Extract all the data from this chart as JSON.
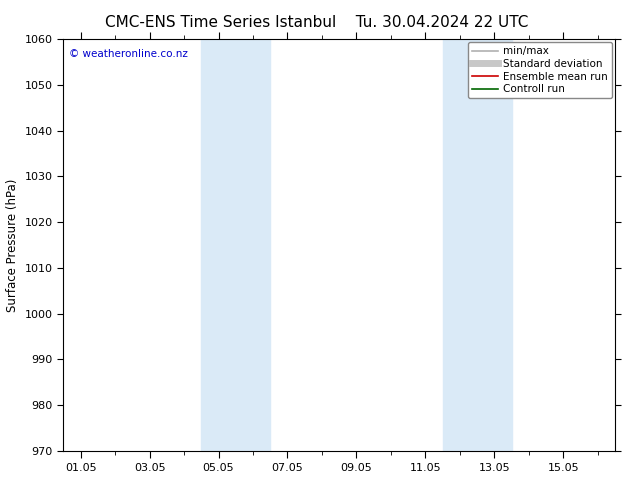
{
  "title_left": "CMC-ENS Time Series Istanbul",
  "title_right": "Tu. 30.04.2024 22 UTC",
  "ylabel": "Surface Pressure (hPa)",
  "ylim": [
    970,
    1060
  ],
  "yticks": [
    970,
    980,
    990,
    1000,
    1010,
    1020,
    1030,
    1040,
    1050,
    1060
  ],
  "xtick_labels": [
    "01.05",
    "03.05",
    "05.05",
    "07.05",
    "09.05",
    "11.05",
    "13.05",
    "15.05"
  ],
  "xtick_positions": [
    0,
    2,
    4,
    6,
    8,
    10,
    12,
    14
  ],
  "xlim": [
    -0.5,
    15.5
  ],
  "shaded_bands": [
    {
      "xmin": 3.5,
      "xmax": 5.5
    },
    {
      "xmin": 10.5,
      "xmax": 12.5
    }
  ],
  "shade_color": "#daeaf7",
  "background_color": "#ffffff",
  "copyright_text": "© weatheronline.co.nz",
  "copyright_color": "#0000cc",
  "legend_entries": [
    {
      "label": "min/max",
      "color": "#b0b0b0",
      "lw": 1.2,
      "ls": "-"
    },
    {
      "label": "Standard deviation",
      "color": "#c8c8c8",
      "lw": 5,
      "ls": "-"
    },
    {
      "label": "Ensemble mean run",
      "color": "#cc0000",
      "lw": 1.2,
      "ls": "-"
    },
    {
      "label": "Controll run",
      "color": "#006600",
      "lw": 1.2,
      "ls": "-"
    }
  ],
  "title_fontsize": 11,
  "axis_fontsize": 8.5,
  "tick_fontsize": 8,
  "legend_fontsize": 7.5,
  "figsize": [
    6.34,
    4.9
  ],
  "dpi": 100
}
